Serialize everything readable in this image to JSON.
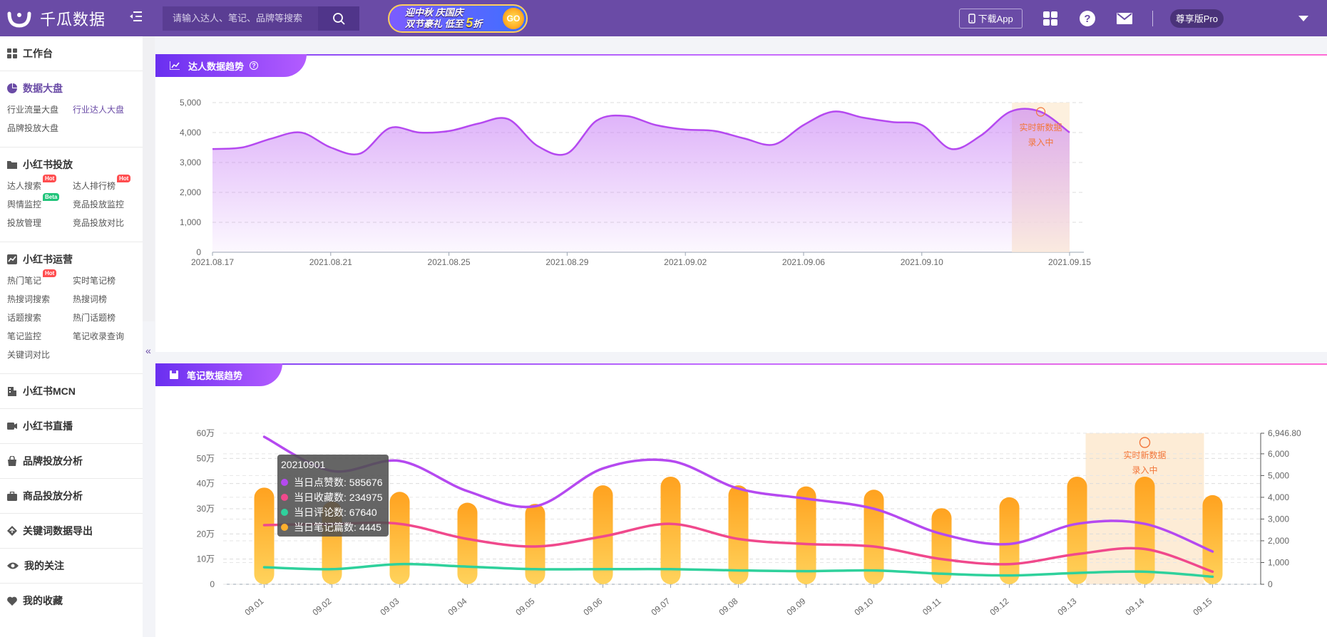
{
  "header": {
    "brand": "千瓜数据",
    "search_placeholder": "请输入达人、笔记、品牌等搜索",
    "promo_line1": "迎中秋 庆国庆",
    "promo_line2_a": "双节豪礼 低至",
    "promo_line2_b": "5",
    "promo_line2_c": "折",
    "promo_go": "GO",
    "download_label": "下载App",
    "plan_label": "尊享版Pro"
  },
  "sidebar": {
    "workbench": "工作台",
    "data_board": "数据大盘",
    "data_board_items": [
      {
        "label": "行业流量大盘",
        "active": false
      },
      {
        "label": "行业达人大盘",
        "active": true
      },
      {
        "label": "品牌投放大盘",
        "active": false
      }
    ],
    "xhs_placement": "小红书投放",
    "xhs_placement_items": [
      {
        "label": "达人搜索",
        "badge": "Hot"
      },
      {
        "label": "达人排行榜",
        "badge": "Hot"
      },
      {
        "label": "舆情监控",
        "badge": "Beta"
      },
      {
        "label": "竞品投放监控",
        "badge": ""
      },
      {
        "label": "投放管理",
        "badge": ""
      },
      {
        "label": "竞品投放对比",
        "badge": ""
      }
    ],
    "xhs_ops": "小红书运营",
    "xhs_ops_items": [
      {
        "label": "热门笔记",
        "badge": "Hot"
      },
      {
        "label": "实时笔记榜",
        "badge": ""
      },
      {
        "label": "热搜词搜索",
        "badge": ""
      },
      {
        "label": "热搜词榜",
        "badge": ""
      },
      {
        "label": "话题搜索",
        "badge": ""
      },
      {
        "label": "热门话题榜",
        "badge": ""
      },
      {
        "label": "笔记监控",
        "badge": ""
      },
      {
        "label": "笔记收录查询",
        "badge": ""
      },
      {
        "label": "关键词对比",
        "badge": ""
      }
    ],
    "xhs_mcn": "小红书MCN",
    "xhs_live": "小红书直播",
    "brand_analysis": "品牌投放分析",
    "product_analysis": "商品投放分析",
    "keyword_export": "关键词数据导出",
    "my_follow": "我的关注",
    "my_favorites": "我的收藏",
    "collapse": "«"
  },
  "panels": {
    "kol_trend_title": "达人数据趋势",
    "note_trend_title": "笔记数据趋势",
    "realtime_line1": "实时新数据",
    "realtime_line2": "录入中"
  },
  "colors": {
    "brand": "#6a4ba6",
    "kol_line": "#b549f0",
    "likes": "#b549f0",
    "favs": "#f0498c",
    "comments": "#2fd19c",
    "notes": "#ffb02e",
    "realtime_bg": "#fdecd6",
    "realtime_text": "#f2763a"
  },
  "chart_data": [
    {
      "type": "area",
      "title": "达人数据趋势",
      "x_ticks": [
        "2021.08.17",
        "2021.08.21",
        "2021.08.25",
        "2021.08.29",
        "2021.09.02",
        "2021.09.06",
        "2021.09.10",
        "2021.09.15"
      ],
      "y_ticks": [
        "0",
        "1,000",
        "2,000",
        "3,000",
        "4,000",
        "5,000"
      ],
      "ylim": [
        0,
        5000
      ],
      "x": [
        "2021.08.17",
        "2021.08.18",
        "2021.08.19",
        "2021.08.20",
        "2021.08.21",
        "2021.08.22",
        "2021.08.23",
        "2021.08.24",
        "2021.08.25",
        "2021.08.26",
        "2021.08.27",
        "2021.08.28",
        "2021.08.29",
        "2021.08.30",
        "2021.08.31",
        "2021.09.01",
        "2021.09.02",
        "2021.09.03",
        "2021.09.04",
        "2021.09.05",
        "2021.09.06",
        "2021.09.07",
        "2021.09.08",
        "2021.09.09",
        "2021.09.10",
        "2021.09.11",
        "2021.09.12",
        "2021.09.13",
        "2021.09.14",
        "2021.09.15"
      ],
      "values": [
        3450,
        3500,
        3800,
        4000,
        3500,
        3300,
        4150,
        4000,
        4050,
        4300,
        4450,
        3550,
        3300,
        4400,
        4550,
        4250,
        4100,
        4050,
        3800,
        3600,
        4250,
        4700,
        4500,
        4350,
        4250,
        3450,
        3900,
        4700,
        4700,
        4000
      ],
      "realtime_from": "2021.09.13",
      "grid": true
    },
    {
      "type": "bar+line",
      "title": "笔记数据趋势",
      "categories": [
        "09.01",
        "09.02",
        "09.03",
        "09.04",
        "09.05",
        "09.06",
        "09.07",
        "09.08",
        "09.09",
        "09.10",
        "09.11",
        "09.12",
        "09.13",
        "09.14",
        "09.15"
      ],
      "y_left_ticks": [
        "0",
        "10万",
        "20万",
        "30万",
        "40万",
        "50万",
        "60万"
      ],
      "y_left_lim": [
        0,
        600000
      ],
      "y_right_ticks": [
        "0",
        "1,000",
        "2,000",
        "3,000",
        "4,000",
        "5,000",
        "6,000",
        "6,946.80"
      ],
      "y_right_lim": [
        0,
        6946.8
      ],
      "series": [
        {
          "name": "当日点赞数",
          "axis": "left",
          "type": "line",
          "values": [
            585676,
            450000,
            490000,
            370000,
            310000,
            460000,
            490000,
            380000,
            340000,
            300000,
            200000,
            160000,
            240000,
            240000,
            130000
          ]
        },
        {
          "name": "当日收藏数",
          "axis": "left",
          "type": "line",
          "values": [
            234975,
            240000,
            240000,
            180000,
            150000,
            190000,
            240000,
            180000,
            160000,
            150000,
            100000,
            80000,
            120000,
            140000,
            50000
          ]
        },
        {
          "name": "当日评论数",
          "axis": "left",
          "type": "line",
          "values": [
            67640,
            60000,
            80000,
            70000,
            60000,
            60000,
            60000,
            55000,
            52000,
            55000,
            42000,
            35000,
            45000,
            50000,
            30000
          ]
        },
        {
          "name": "当日笔记篇数",
          "axis": "right",
          "type": "bar",
          "values": [
            4445,
            3800,
            4250,
            3750,
            3700,
            4550,
            4950,
            4550,
            4500,
            4350,
            3500,
            4000,
            4950,
            4950,
            4100
          ]
        }
      ],
      "tooltip": {
        "date": "20210901",
        "rows": [
          {
            "label": "当日点赞数",
            "value": "585676"
          },
          {
            "label": "当日收藏数",
            "value": "234975"
          },
          {
            "label": "当日评论数",
            "value": "67640"
          },
          {
            "label": "当日笔记篇数",
            "value": "4445"
          }
        ]
      },
      "realtime_from": "09.14"
    }
  ]
}
